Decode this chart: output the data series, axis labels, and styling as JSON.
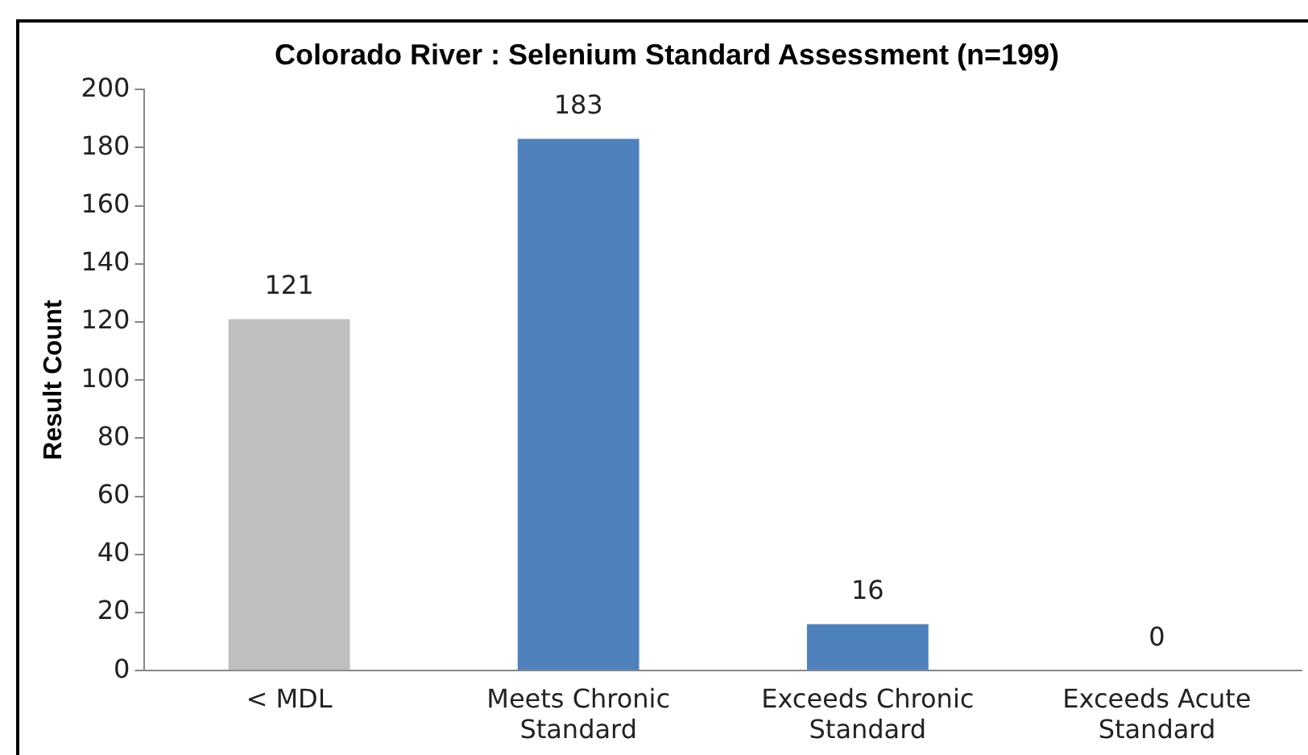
{
  "chart_data": {
    "type": "bar",
    "title": "Colorado River : Selenium Standard Assessment (n=199)",
    "ylabel": "Result Count",
    "categories": [
      "< MDL",
      "Meets Chronic Standard",
      "Exceeds Chronic Standard",
      "Exceeds Acute Standard"
    ],
    "values": [
      121,
      183,
      16,
      0
    ],
    "colors": [
      "#bfbfbf",
      "#4f81bd",
      "#4f81bd",
      "#4f81bd"
    ],
    "ylim": [
      0,
      200
    ],
    "yticks": [
      0,
      20,
      40,
      60,
      80,
      100,
      120,
      140,
      160,
      180,
      200
    ],
    "grid": false,
    "legend": false,
    "data_labels": true
  }
}
